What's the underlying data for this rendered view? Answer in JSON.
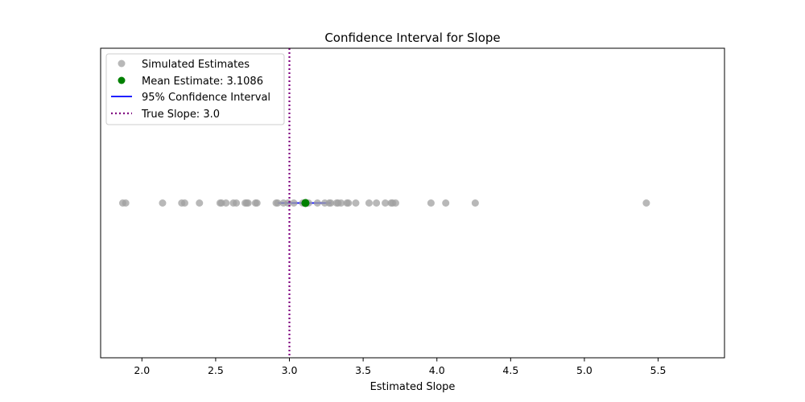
{
  "chart_data": {
    "type": "scatter",
    "title": "Confidence Interval for Slope",
    "xlabel": "Estimated Slope",
    "ylabel": "",
    "xlim": [
      1.72,
      5.95
    ],
    "ylim": [
      -1,
      1
    ],
    "xticks": [
      2.0,
      2.5,
      3.0,
      3.5,
      4.0,
      4.5,
      5.0,
      5.5
    ],
    "xtick_labels": [
      "2.0",
      "2.5",
      "3.0",
      "3.5",
      "4.0",
      "4.5",
      "5.0",
      "5.5"
    ],
    "y_axis_visible": false,
    "grid": false,
    "legend_position": "top-left",
    "series": [
      {
        "name": "Simulated Estimates",
        "kind": "scatter",
        "color": "#a0a0a0",
        "y": 0,
        "x": [
          1.87,
          1.89,
          2.14,
          2.27,
          2.29,
          2.39,
          2.53,
          2.54,
          2.57,
          2.62,
          2.64,
          2.7,
          2.71,
          2.72,
          2.77,
          2.78,
          2.91,
          2.92,
          2.96,
          2.99,
          3.03,
          3.09,
          3.13,
          3.19,
          3.24,
          3.27,
          3.28,
          3.32,
          3.33,
          3.35,
          3.39,
          3.4,
          3.45,
          3.54,
          3.59,
          3.65,
          3.69,
          3.7,
          3.72,
          3.96,
          4.06,
          4.26,
          5.42
        ]
      },
      {
        "name": "Mean Estimate: 3.1086",
        "kind": "scatter",
        "color": "#008000",
        "y": 0,
        "x": [
          3.1086
        ]
      },
      {
        "name": "95% Confidence Interval",
        "kind": "line",
        "color": "#0000ff",
        "y": 0,
        "x": [
          2.92,
          3.28
        ]
      },
      {
        "name": "True Slope: 3.0",
        "kind": "vline",
        "color": "#800080",
        "style": "dotted",
        "x": 3.0
      }
    ]
  }
}
